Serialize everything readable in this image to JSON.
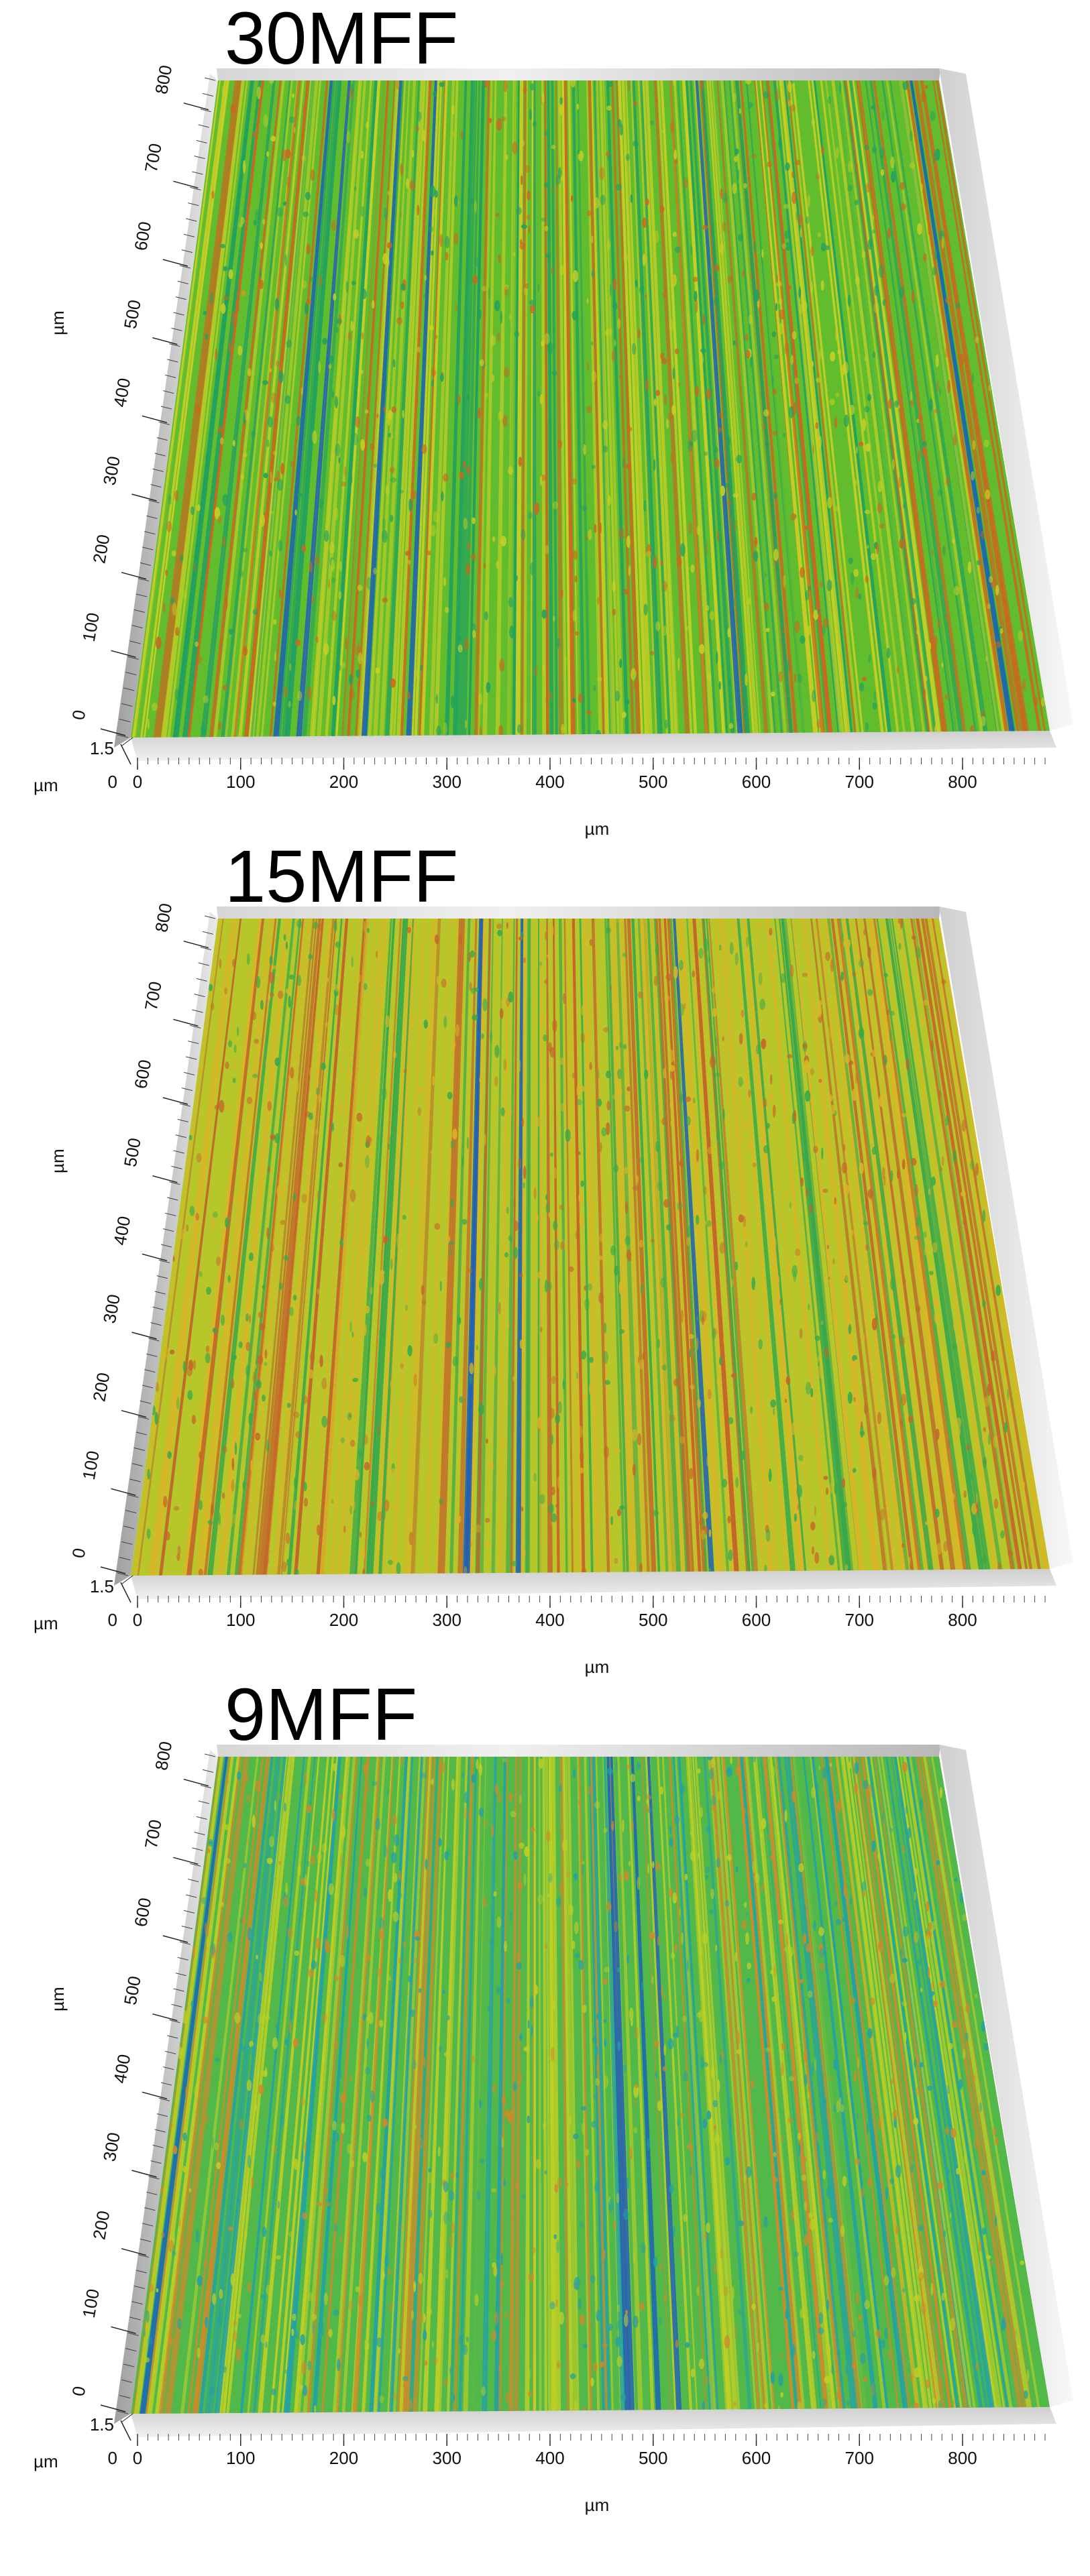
{
  "figure": {
    "panels": [
      {
        "title": "30MFF",
        "x_ticks": [
          "0",
          "100",
          "200",
          "300",
          "400",
          "500",
          "600",
          "700",
          "800"
        ],
        "y_ticks": [
          "0",
          "100",
          "200",
          "300",
          "400",
          "500",
          "600",
          "700",
          "800"
        ],
        "z_ticks": [
          "0",
          "1.5"
        ],
        "x_unit": "µm",
        "y_unit": "µm",
        "z_unit": "µm",
        "surface_tone": "green-yellow with orange peaks",
        "palette": {
          "low": "#1f5fb5",
          "mid_low": "#20a060",
          "mid": "#62bd2e",
          "mid_high": "#c9cf25",
          "high": "#c9681f"
        },
        "groove_density": 0.8
      },
      {
        "title": "15MFF",
        "x_ticks": [
          "0",
          "100",
          "200",
          "300",
          "400",
          "500",
          "600",
          "700",
          "800"
        ],
        "y_ticks": [
          "0",
          "100",
          "200",
          "300",
          "400",
          "500",
          "600",
          "700",
          "800"
        ],
        "z_ticks": [
          "0",
          "1.5"
        ],
        "x_unit": "µm",
        "y_unit": "µm",
        "z_unit": "µm",
        "surface_tone": "yellow-orange with green grooves",
        "palette": {
          "low": "#1f5fb5",
          "mid_low": "#3aa84a",
          "mid": "#b7c62a",
          "mid_high": "#d8b627",
          "high": "#c3662a"
        },
        "groove_density": 0.6
      },
      {
        "title": "9MFF",
        "x_ticks": [
          "0",
          "100",
          "200",
          "300",
          "400",
          "500",
          "600",
          "700",
          "800"
        ],
        "y_ticks": [
          "0",
          "100",
          "200",
          "300",
          "400",
          "500",
          "600",
          "700",
          "800"
        ],
        "z_ticks": [
          "0",
          "1.5"
        ],
        "x_unit": "µm",
        "y_unit": "µm",
        "z_unit": "µm",
        "surface_tone": "green-yellow with blue grooves",
        "palette": {
          "low": "#1d61b8",
          "mid_low": "#23a2a2",
          "mid": "#52b84a",
          "mid_high": "#bfcf25",
          "high": "#cf8a2b"
        },
        "groove_density": 0.7
      }
    ]
  }
}
